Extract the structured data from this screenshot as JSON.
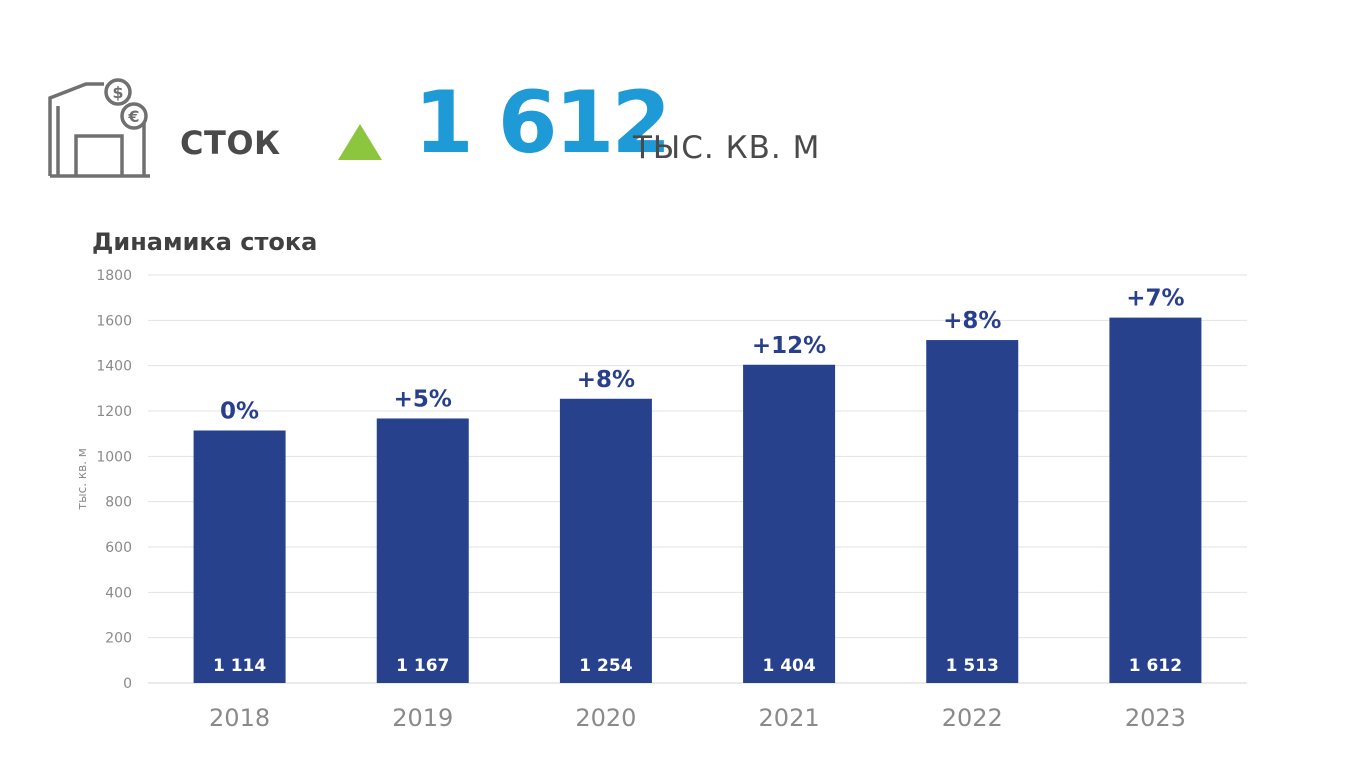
{
  "header": {
    "label": "СТОК",
    "value": "1 612",
    "unit": "ТЫС. КВ. М",
    "trend": "up",
    "icon": "warehouse-currency-icon",
    "colors": {
      "value": "#1e9bd7",
      "arrow": "#8cc63f",
      "icon": "#707070"
    }
  },
  "chart_data": {
    "type": "bar",
    "title": "Динамика стока",
    "ylabel": "тыс. кв. м",
    "xlabel": "",
    "categories": [
      "2018",
      "2019",
      "2020",
      "2021",
      "2022",
      "2023"
    ],
    "values": [
      1114,
      1167,
      1254,
      1404,
      1513,
      1612
    ],
    "value_labels": [
      "1 114",
      "1 167",
      "1 254",
      "1 404",
      "1 513",
      "1 612"
    ],
    "growth_labels": [
      "0%",
      "+5%",
      "+8%",
      "+12%",
      "+8%",
      "+7%"
    ],
    "ylim": [
      0,
      1800
    ],
    "yticks": [
      0,
      200,
      400,
      600,
      800,
      1000,
      1200,
      1400,
      1600,
      1800
    ],
    "grid": true,
    "bar_color": "#27418c"
  }
}
